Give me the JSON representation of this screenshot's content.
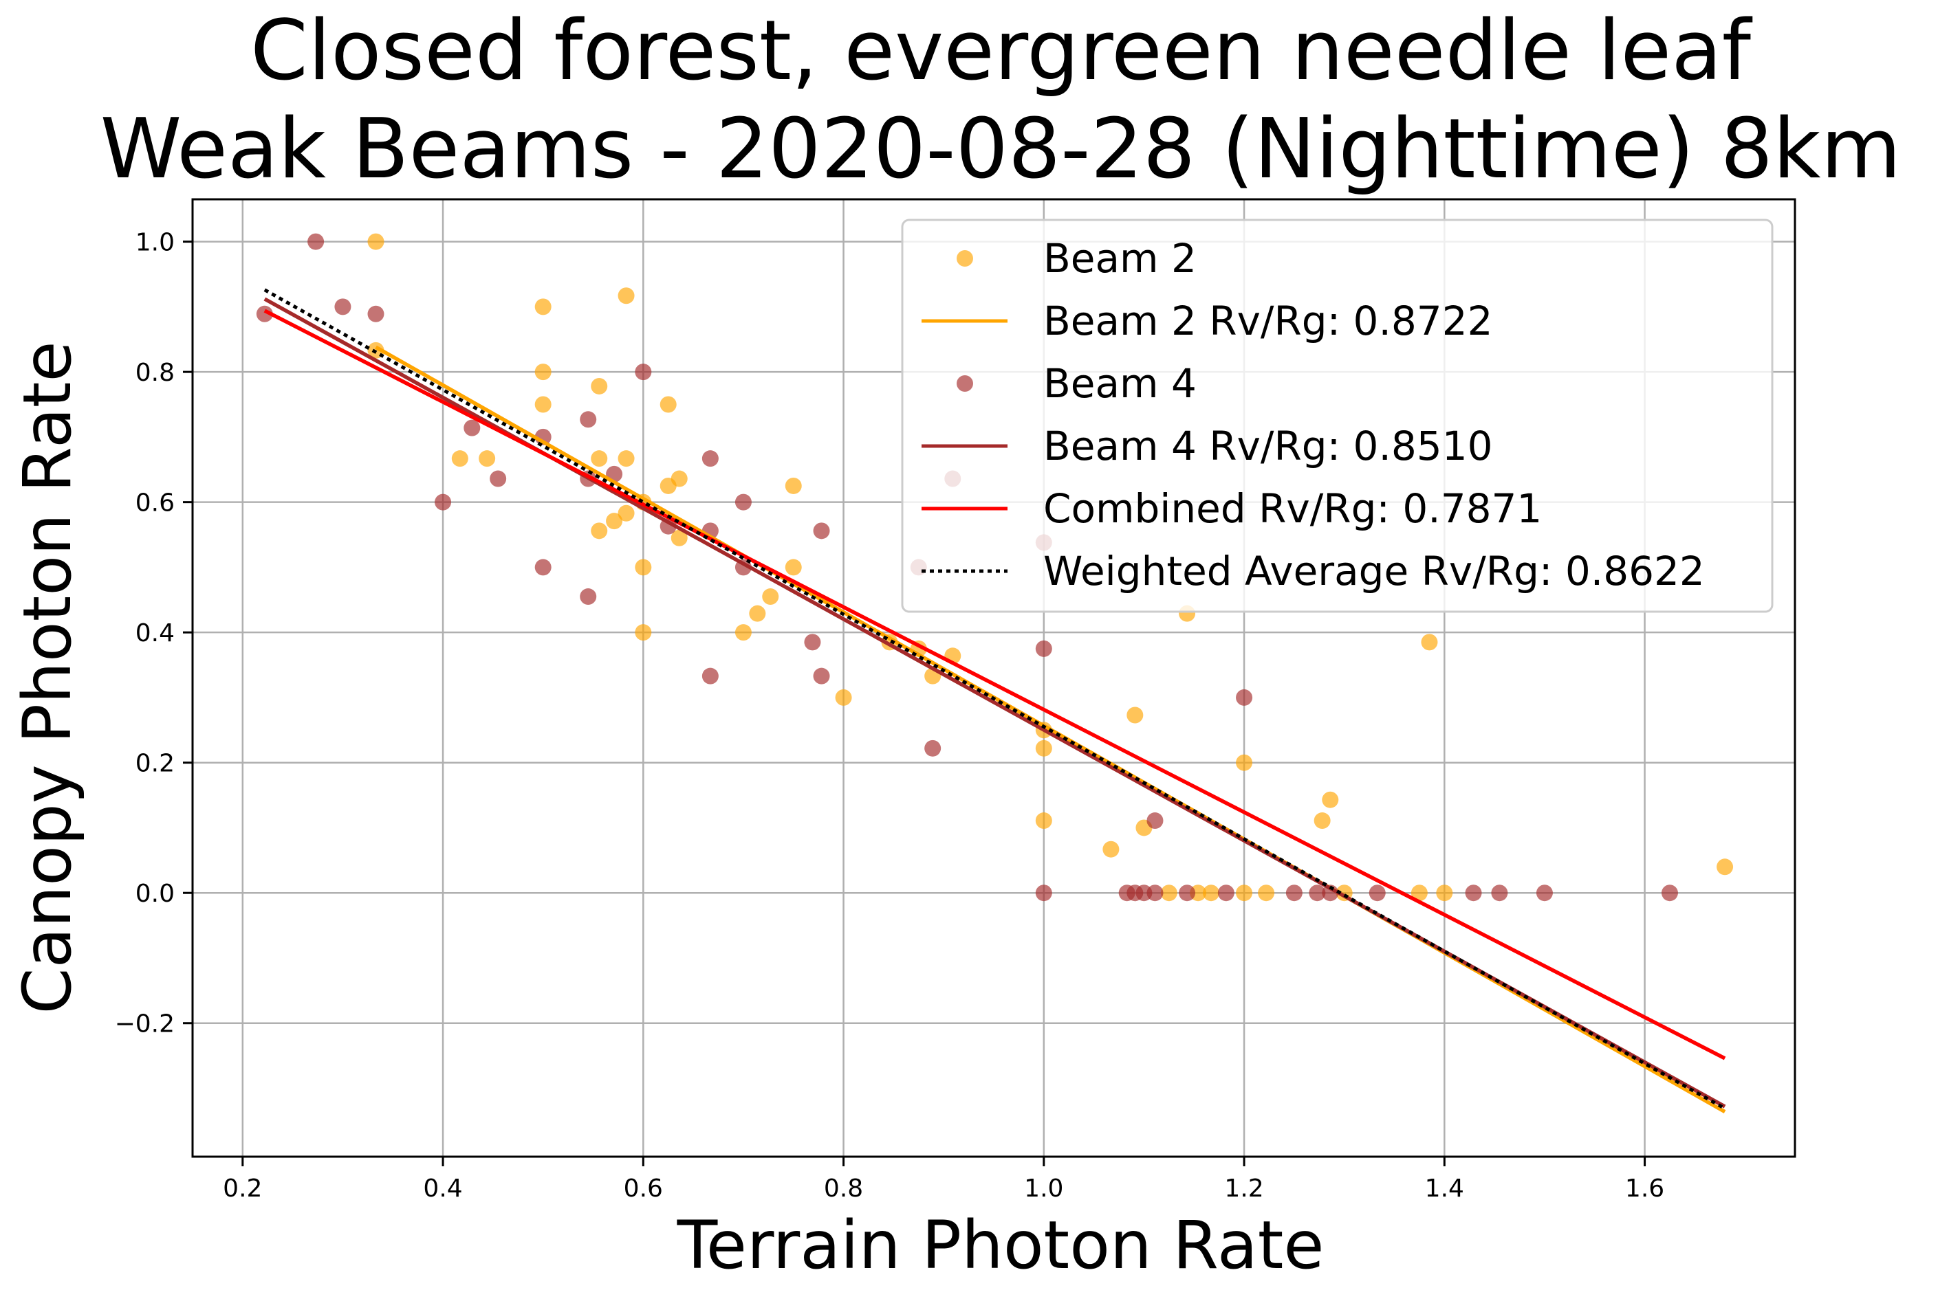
{
  "chart_data": {
    "type": "scatter",
    "title_lines": [
      "Closed forest, evergreen needle leaf",
      "Weak Beams - 2020-08-28 (Nighttime) 8km"
    ],
    "xlabel": "Terrain Photon Rate",
    "ylabel": "Canopy Photon Rate",
    "xlim": [
      0.15,
      1.75
    ],
    "ylim": [
      -0.405,
      1.065
    ],
    "xticks": [
      0.2,
      0.4,
      0.6,
      0.8,
      1.0,
      1.2,
      1.4,
      1.6
    ],
    "xtick_labels": [
      "0.2",
      "0.4",
      "0.6",
      "0.8",
      "1.0",
      "1.2",
      "1.4",
      "1.6"
    ],
    "yticks": [
      -0.2,
      0.0,
      0.2,
      0.4,
      0.6,
      0.8,
      1.0
    ],
    "ytick_labels": [
      "−0.2",
      "0.0",
      "0.2",
      "0.4",
      "0.6",
      "0.8",
      "1.0"
    ],
    "grid": true,
    "legend_position": "top-right",
    "series": [
      {
        "name": "Beam 2",
        "kind": "scatter",
        "color": "#FFA500",
        "alpha": 0.65,
        "points": [
          [
            0.333,
            1.0
          ],
          [
            0.5,
            0.9
          ],
          [
            0.583,
            0.917
          ],
          [
            0.333,
            0.833
          ],
          [
            0.5,
            0.8
          ],
          [
            0.5,
            0.75
          ],
          [
            0.556,
            0.778
          ],
          [
            0.625,
            0.75
          ],
          [
            0.417,
            0.667
          ],
          [
            0.444,
            0.667
          ],
          [
            0.556,
            0.667
          ],
          [
            0.583,
            0.667
          ],
          [
            0.625,
            0.625
          ],
          [
            0.636,
            0.636
          ],
          [
            0.75,
            0.625
          ],
          [
            0.6,
            0.6
          ],
          [
            0.571,
            0.571
          ],
          [
            0.583,
            0.583
          ],
          [
            0.556,
            0.556
          ],
          [
            0.636,
            0.545
          ],
          [
            0.6,
            0.5
          ],
          [
            0.75,
            0.5
          ],
          [
            0.727,
            0.455
          ],
          [
            0.714,
            0.429
          ],
          [
            0.7,
            0.4
          ],
          [
            0.6,
            0.4
          ],
          [
            0.846,
            0.385
          ],
          [
            0.875,
            0.375
          ],
          [
            0.909,
            0.364
          ],
          [
            0.889,
            0.333
          ],
          [
            0.8,
            0.3
          ],
          [
            1.0,
            0.25
          ],
          [
            1.0,
            0.222
          ],
          [
            1.091,
            0.273
          ],
          [
            1.2,
            0.2
          ],
          [
            1.143,
            0.429
          ],
          [
            1.385,
            0.385
          ],
          [
            1.0,
            0.111
          ],
          [
            1.1,
            0.1
          ],
          [
            1.067,
            0.067
          ],
          [
            1.286,
            0.143
          ],
          [
            1.278,
            0.111
          ],
          [
            1.68,
            0.04
          ],
          [
            1.125,
            0.0
          ],
          [
            1.154,
            0.0
          ],
          [
            1.167,
            0.0
          ],
          [
            1.2,
            0.0
          ],
          [
            1.222,
            0.0
          ],
          [
            1.3,
            0.0
          ],
          [
            1.375,
            0.0
          ],
          [
            1.4,
            0.0
          ]
        ]
      },
      {
        "name": "Beam 4",
        "kind": "scatter",
        "color": "#A52A2A",
        "alpha": 0.65,
        "points": [
          [
            0.273,
            1.0
          ],
          [
            0.222,
            0.889
          ],
          [
            0.3,
            0.9
          ],
          [
            0.333,
            0.889
          ],
          [
            0.6,
            0.8
          ],
          [
            0.429,
            0.714
          ],
          [
            0.545,
            0.727
          ],
          [
            0.5,
            0.7
          ],
          [
            0.667,
            0.667
          ],
          [
            0.571,
            0.643
          ],
          [
            0.455,
            0.636
          ],
          [
            0.545,
            0.636
          ],
          [
            0.4,
            0.6
          ],
          [
            0.7,
            0.6
          ],
          [
            0.625,
            0.563
          ],
          [
            0.667,
            0.556
          ],
          [
            0.778,
            0.556
          ],
          [
            0.7,
            0.5
          ],
          [
            0.5,
            0.5
          ],
          [
            0.545,
            0.455
          ],
          [
            0.909,
            0.636
          ],
          [
            0.875,
            0.5
          ],
          [
            1.0,
            0.538
          ],
          [
            0.769,
            0.385
          ],
          [
            0.667,
            0.333
          ],
          [
            0.778,
            0.333
          ],
          [
            1.0,
            0.375
          ],
          [
            1.2,
            0.3
          ],
          [
            0.889,
            0.222
          ],
          [
            1.111,
            0.111
          ],
          [
            1.0,
            0.0
          ],
          [
            1.083,
            0.0
          ],
          [
            1.091,
            0.0
          ],
          [
            1.1,
            0.0
          ],
          [
            1.111,
            0.0
          ],
          [
            1.143,
            0.0
          ],
          [
            1.182,
            0.0
          ],
          [
            1.25,
            0.0
          ],
          [
            1.273,
            0.0
          ],
          [
            1.286,
            0.0
          ],
          [
            1.333,
            0.0
          ],
          [
            1.429,
            0.0
          ],
          [
            1.455,
            0.0
          ],
          [
            1.5,
            0.0
          ],
          [
            1.625,
            0.0
          ]
        ]
      },
      {
        "name": "Beam 2 Rv/Rg: 0.8722",
        "kind": "line",
        "color": "#FFA500",
        "style": "solid",
        "points": [
          [
            0.333,
            0.838
          ],
          [
            1.68,
            -0.336
          ]
        ]
      },
      {
        "name": "Beam 4 Rv/Rg: 0.8510",
        "kind": "line",
        "color": "#A52A2A",
        "style": "solid",
        "points": [
          [
            0.222,
            0.912
          ],
          [
            1.68,
            -0.328
          ]
        ]
      },
      {
        "name": "Combined Rv/Rg: 0.7871",
        "kind": "line",
        "color": "#FF0000",
        "style": "solid",
        "points": [
          [
            0.222,
            0.894
          ],
          [
            1.68,
            -0.254
          ]
        ]
      },
      {
        "name": "Weighted Average Rv/Rg: 0.8622",
        "kind": "line",
        "color": "#000000",
        "style": "dotted",
        "points": [
          [
            0.222,
            0.926
          ],
          [
            1.68,
            -0.331
          ]
        ]
      }
    ],
    "legend": [
      {
        "label": "Beam 2",
        "marker": "circle",
        "color": "#FFA500"
      },
      {
        "label": "Beam 2 Rv/Rg: 0.8722",
        "marker": "line",
        "color": "#FFA500",
        "style": "solid"
      },
      {
        "label": "Beam 4",
        "marker": "circle",
        "color": "#A52A2A"
      },
      {
        "label": "Beam 4 Rv/Rg: 0.8510",
        "marker": "line",
        "color": "#A52A2A",
        "style": "solid"
      },
      {
        "label": "Combined Rv/Rg: 0.7871",
        "marker": "line",
        "color": "#FF0000",
        "style": "solid"
      },
      {
        "label": "Weighted Average Rv/Rg: 0.8622",
        "marker": "line",
        "color": "#000000",
        "style": "dotted"
      }
    ]
  }
}
